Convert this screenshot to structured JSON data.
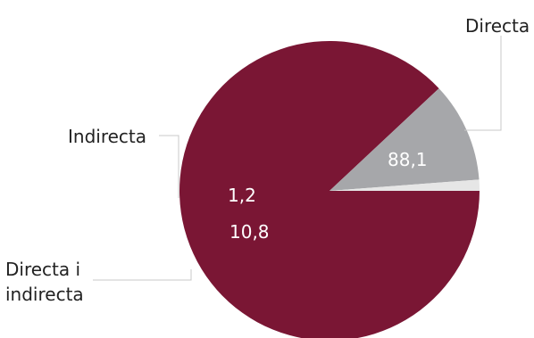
{
  "chart_data": {
    "type": "pie",
    "title": "",
    "slices": [
      {
        "label": "Directa",
        "value": 88.1,
        "value_label": "88,1",
        "color": "#7a1634"
      },
      {
        "label": "Directa i indirecta",
        "value": 10.8,
        "value_label": "10,8",
        "color": "#a6a7aa"
      },
      {
        "label": "Indirecta",
        "value": 1.2,
        "value_label": "1,2",
        "color": "#e6e6e6"
      }
    ],
    "legend": "external labels with leader lines",
    "start_direction": "east",
    "direction": "clockwise"
  }
}
